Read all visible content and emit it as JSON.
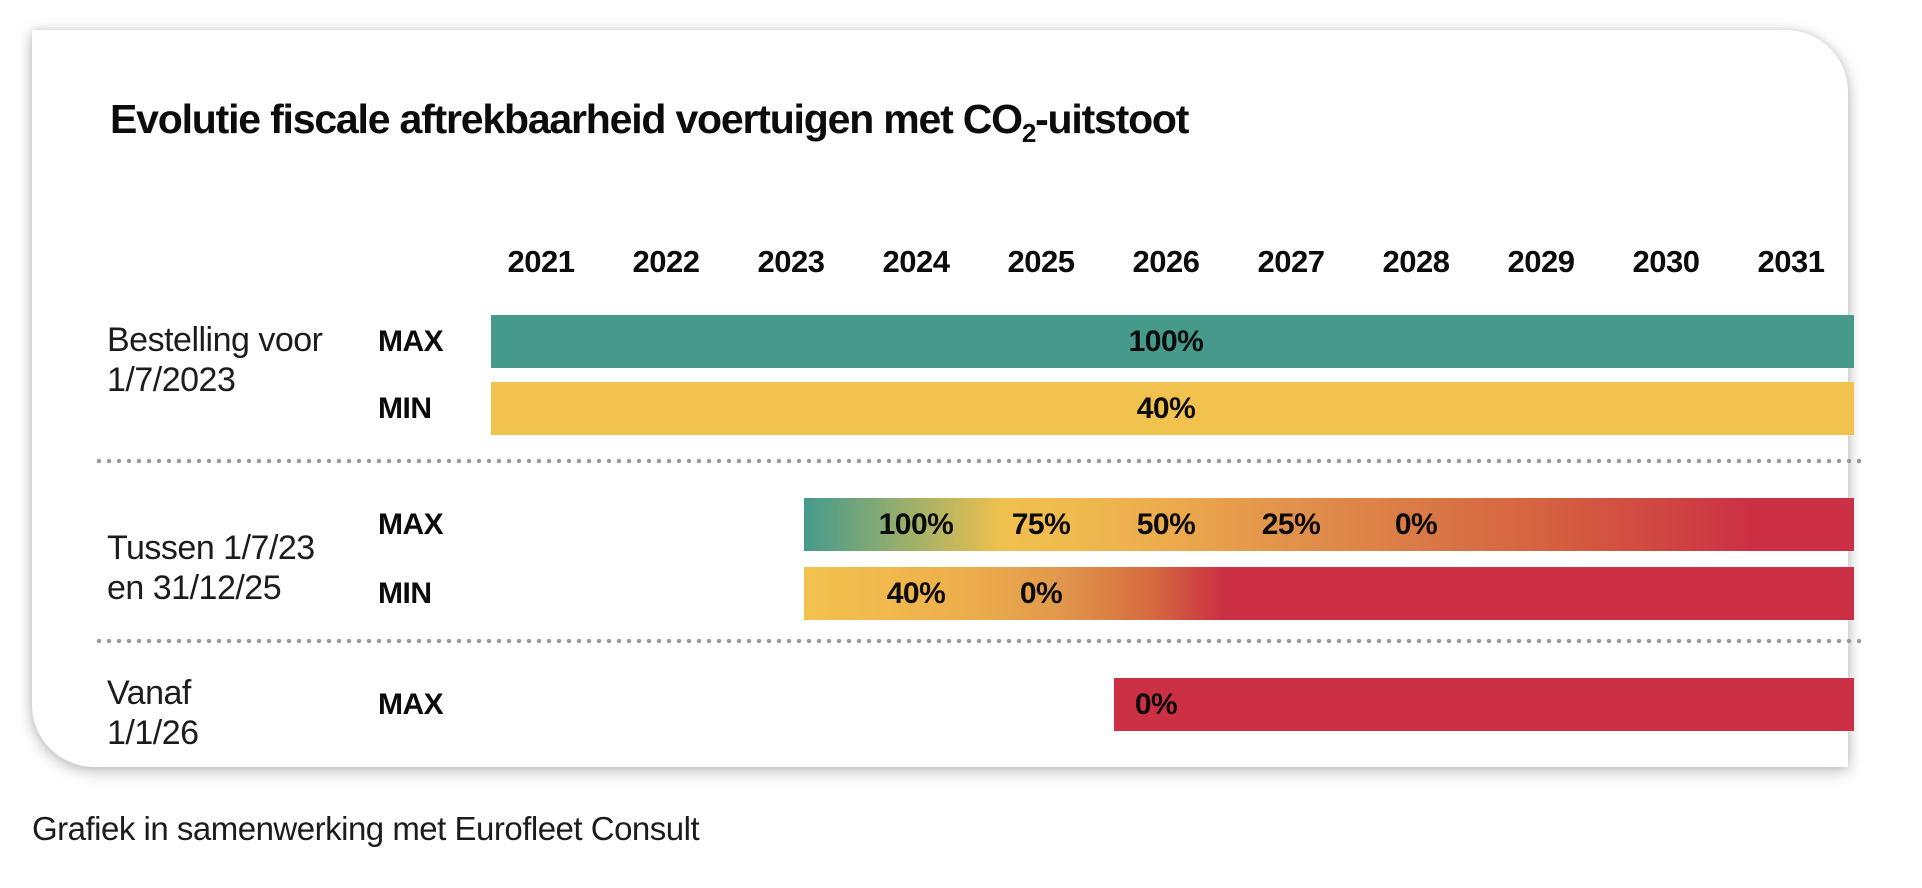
{
  "title": {
    "text_before_sub": "Evolutie fiscale aftrekbaarheid voertuigen met CO",
    "subscript": "2",
    "text_after_sub": "-uitstoot"
  },
  "footer": {
    "text": "Grafiek in samenwerking met Eurofleet Consult"
  },
  "colors": {
    "teal": "#459a8c",
    "yellow": "#f2c24f",
    "orange": "#e2914b",
    "red": "#cb3044",
    "dot_gray": "#9a9a9a",
    "text": "#0c0c0c"
  },
  "chart_data": {
    "type": "bar",
    "variant": "horizontal-timeline",
    "title": "Evolutie fiscale aftrekbaarheid voertuigen met CO2-uitstoot",
    "years": [
      "2021",
      "2022",
      "2023",
      "2024",
      "2025",
      "2026",
      "2027",
      "2028",
      "2029",
      "2030",
      "2031"
    ],
    "x_axis_range": [
      2020.6,
      2031.5
    ],
    "grid": false,
    "legend": false,
    "groups": [
      {
        "label_lines": [
          "Bestelling voor",
          "1/7/2023"
        ],
        "rows": [
          {
            "name": "MAX",
            "start": 2020.6,
            "end": 2031.5,
            "fill_stops": [
              {
                "pos": 2020.6,
                "color": "#459a8c"
              },
              {
                "pos": 2031.5,
                "color": "#459a8c"
              }
            ],
            "value_labels": [
              {
                "text": "100%",
                "year": 2026
              }
            ]
          },
          {
            "name": "MIN",
            "start": 2020.6,
            "end": 2031.5,
            "fill_stops": [
              {
                "pos": 2020.6,
                "color": "#f2c24f"
              },
              {
                "pos": 2031.5,
                "color": "#f2c24f"
              }
            ],
            "value_labels": [
              {
                "text": "40%",
                "year": 2026
              }
            ]
          }
        ]
      },
      {
        "label_lines": [
          "Tussen 1/7/23",
          "en 31/12/25"
        ],
        "rows": [
          {
            "name": "MAX",
            "start": 2023.1,
            "end": 2031.5,
            "fill_stops": [
              {
                "pos": 2023.1,
                "color": "#459a8c"
              },
              {
                "pos": 2024.0,
                "color": "#a3b168"
              },
              {
                "pos": 2024.7,
                "color": "#f0c04e"
              },
              {
                "pos": 2025.3,
                "color": "#efb94e"
              },
              {
                "pos": 2026.0,
                "color": "#ecab4d"
              },
              {
                "pos": 2027.0,
                "color": "#e2914b"
              },
              {
                "pos": 2028.0,
                "color": "#da7a46"
              },
              {
                "pos": 2029.2,
                "color": "#d45d40"
              },
              {
                "pos": 2030.7,
                "color": "#cb3044"
              },
              {
                "pos": 2031.5,
                "color": "#cb3044"
              }
            ],
            "value_labels": [
              {
                "text": "100%",
                "year": 2024
              },
              {
                "text": "75%",
                "year": 2025
              },
              {
                "text": "50%",
                "year": 2026
              },
              {
                "text": "25%",
                "year": 2027
              },
              {
                "text": "0%",
                "year": 2028
              }
            ]
          },
          {
            "name": "MIN",
            "start": 2023.1,
            "end": 2031.5,
            "fill_stops": [
              {
                "pos": 2023.1,
                "color": "#f2c24f"
              },
              {
                "pos": 2024.3,
                "color": "#eeb04c"
              },
              {
                "pos": 2025.1,
                "color": "#e29a4c"
              },
              {
                "pos": 2025.9,
                "color": "#d5693f"
              },
              {
                "pos": 2026.45,
                "color": "#cb3044"
              },
              {
                "pos": 2031.5,
                "color": "#cb3044"
              }
            ],
            "value_labels": [
              {
                "text": "40%",
                "year": 2024
              },
              {
                "text": "0%",
                "year": 2025
              }
            ]
          }
        ]
      },
      {
        "label_lines": [
          "Vanaf",
          "1/1/26"
        ],
        "rows": [
          {
            "name": "MAX",
            "start": 2025.58,
            "end": 2031.5,
            "fill_stops": [
              {
                "pos": 2025.58,
                "color": "#cb3044"
              },
              {
                "pos": 2031.5,
                "color": "#cb3044"
              }
            ],
            "value_labels": [
              {
                "text": "0%",
                "year": 2025.92
              }
            ]
          }
        ]
      }
    ]
  }
}
